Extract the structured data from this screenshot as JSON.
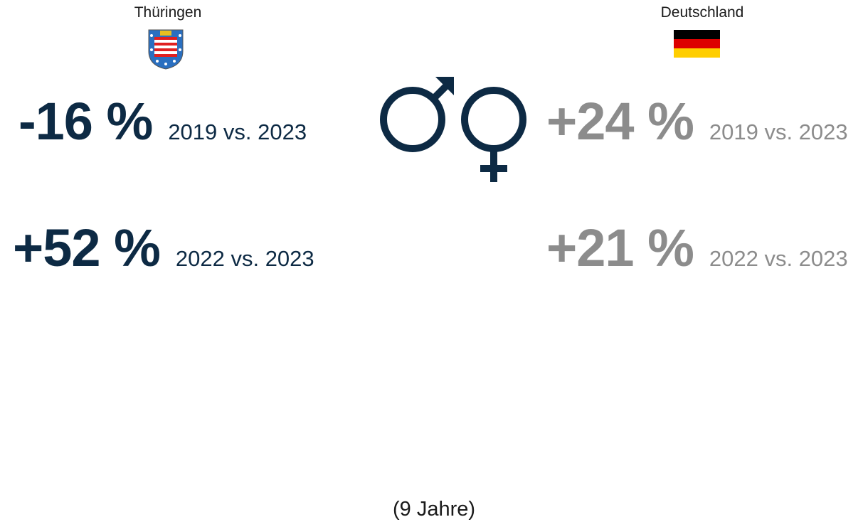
{
  "left": {
    "region": "Thüringen",
    "stats": [
      {
        "value": "-16 %",
        "period": "2019 vs. 2023"
      },
      {
        "value": "+52 %",
        "period": "2022 vs. 2023"
      }
    ]
  },
  "right": {
    "region": "Deutschland",
    "stats": [
      {
        "value": "+24 %",
        "period": "2019 vs. 2023"
      },
      {
        "value": "+21 %",
        "period": "2022 vs. 2023"
      }
    ]
  },
  "footer": "(9 Jahre)"
}
